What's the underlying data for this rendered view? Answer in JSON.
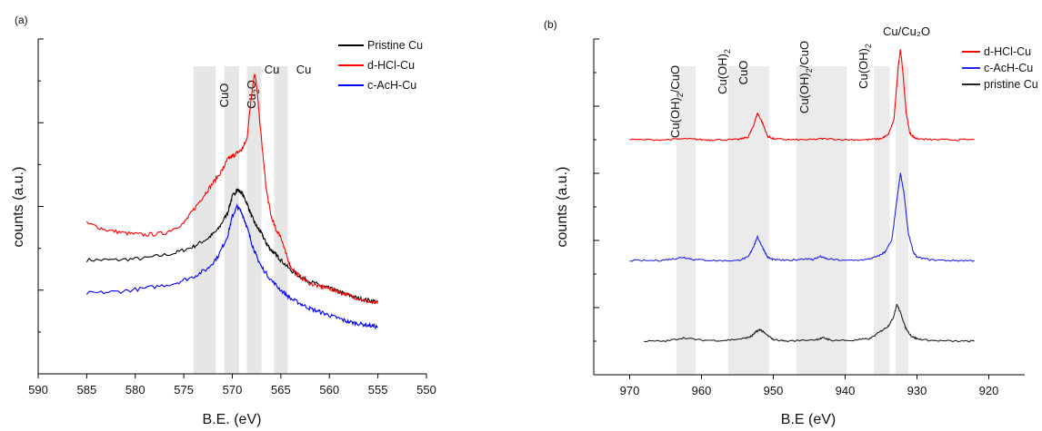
{
  "chart_data": [
    {
      "type": "line",
      "panel_label": "(a)",
      "xlabel": "B.E. (eV)",
      "ylabel": "counts (a.u.)",
      "xlim": [
        590,
        550
      ],
      "xticks": [
        590,
        585,
        580,
        575,
        570,
        565,
        560,
        555,
        550
      ],
      "ylim": [
        0,
        100
      ],
      "yticks_labeled": false,
      "grid": false,
      "legend_position": "top-right",
      "bands": [
        {
          "label": "CuO",
          "from": 574.0,
          "to": 571.7
        },
        {
          "label": "Cu2O",
          "from": 570.8,
          "to": 569.3
        },
        {
          "label": "Cu",
          "from": 568.5,
          "to": 567.0
        },
        {
          "label": "Cu",
          "from": 565.7,
          "to": 564.3
        }
      ],
      "band_labels": {
        "cuo": "CuO",
        "cu2o_base": "Cu",
        "cu2o_sub": "2",
        "cu2o_tail": "O",
        "cu1": "Cu",
        "cu2": "Cu"
      },
      "series": [
        {
          "name": "Pristine Cu",
          "color": "#000000",
          "x": [
            585,
            582,
            579,
            576,
            574,
            572.5,
            571.5,
            570.5,
            570,
            569.5,
            569,
            568.5,
            568,
            567.5,
            567,
            566.5,
            566,
            565.5,
            565,
            564,
            563,
            562,
            561,
            560,
            559,
            558,
            557,
            556,
            555
          ],
          "y": [
            34,
            34,
            34.5,
            36,
            38,
            40.5,
            43,
            48,
            53,
            55,
            54,
            51,
            47,
            44,
            42,
            39,
            37,
            35.5,
            34,
            31,
            29,
            27.5,
            26.5,
            25.5,
            24.5,
            23.5,
            22.5,
            22,
            21.5
          ]
        },
        {
          "name": "d-HCl-Cu",
          "color": "#ff0000",
          "x": [
            585,
            583,
            581,
            579,
            577,
            575,
            574,
            573,
            572,
            571,
            570.5,
            570,
            569.5,
            569,
            568.5,
            568,
            567.7,
            567.5,
            567,
            566.5,
            566,
            565.5,
            565,
            564.5,
            564,
            563,
            562,
            561,
            560,
            559,
            558,
            557,
            556,
            555
          ],
          "y": [
            45,
            43,
            42,
            41.5,
            42,
            45,
            49,
            53,
            57,
            61,
            64,
            65,
            66,
            67,
            70,
            84,
            90,
            86,
            70,
            55,
            47,
            43,
            41,
            36,
            32,
            29,
            27,
            26,
            25.5,
            24.5,
            23.5,
            22.5,
            21.5,
            21
          ]
        },
        {
          "name": "c-AcH-Cu",
          "color": "#0000ff",
          "x": [
            585,
            582,
            579,
            576,
            574,
            572.5,
            571.5,
            570.5,
            570,
            569.5,
            569,
            568.5,
            568,
            567.5,
            567,
            566,
            565,
            564,
            563,
            562,
            561,
            560,
            559,
            558,
            557,
            556,
            555
          ],
          "y": [
            24,
            24.5,
            25.5,
            27,
            29,
            31.5,
            35,
            41,
            47,
            50,
            48,
            44,
            39,
            35,
            32,
            28,
            25,
            22.5,
            21,
            19.5,
            18.5,
            17.5,
            16.5,
            15.5,
            15,
            14.5,
            14
          ]
        }
      ]
    },
    {
      "type": "line",
      "panel_label": "(b)",
      "xlabel": "B.E (eV)",
      "ylabel": "counts (a.u.)",
      "xlim": [
        975,
        915
      ],
      "xticks": [
        970,
        960,
        950,
        940,
        930,
        920
      ],
      "ylim": [
        0,
        100
      ],
      "yticks_labeled": false,
      "grid": false,
      "legend_position": "top-right",
      "bands": [
        {
          "label": "Cu(OH)2/CuO",
          "from": 963.5,
          "to": 960.8
        },
        {
          "label": "Cu(OH)2",
          "from": 956.3,
          "to": 953.5
        },
        {
          "label": "CuO",
          "from": 953.5,
          "to": 950.6
        },
        {
          "label": "Cu(OH)2/CuO",
          "from": 946.8,
          "to": 939.8
        },
        {
          "label": "Cu(OH)2",
          "from": 936.0,
          "to": 933.8
        },
        {
          "label": "Cu/Cu2O",
          "from": 933.0,
          "to": 931.2
        }
      ],
      "band_labels": {
        "b1_pre": "Cu(OH)",
        "b1_sub": "2",
        "b1_post": "/CuO",
        "b2_pre": "Cu(OH)",
        "b2_sub": "2",
        "b3": "CuO",
        "b4_pre": "Cu(OH)",
        "b4_sub": "2",
        "b4_post": "/CuO",
        "b5_pre": "Cu(OH)",
        "b5_sub": "2",
        "b6": "Cu/Cu₂O"
      },
      "series": [
        {
          "name": "d-HCl-Cu",
          "color": "#ff0000",
          "x": [
            970,
            965,
            962,
            960,
            958,
            955,
            953.5,
            952.8,
            952.2,
            951.5,
            950.8,
            950,
            948,
            945,
            943,
            940,
            937,
            935,
            934,
            933.2,
            932.6,
            932.3,
            932,
            931.5,
            931,
            930.5,
            930,
            928,
            925,
            922
          ],
          "y": [
            70,
            70,
            70.3,
            70,
            70,
            70,
            70.8,
            74,
            78,
            75,
            71,
            70.3,
            70,
            70,
            70.3,
            70,
            70,
            70.3,
            71.5,
            76,
            92,
            97,
            91,
            78,
            72,
            70.8,
            70.3,
            70,
            70,
            70
          ]
        },
        {
          "name": "c-AcH-Cu",
          "color": "#2222ee",
          "x": [
            970,
            966,
            964,
            962.5,
            961,
            958,
            955,
            953.5,
            952.8,
            952.2,
            951.5,
            950.8,
            950,
            948,
            945.5,
            944.5,
            943.5,
            942.5,
            940,
            937,
            935.5,
            934.5,
            933.5,
            932.8,
            932.3,
            931.8,
            931.2,
            930.5,
            930,
            928,
            925,
            922
          ],
          "y": [
            34,
            34,
            34.5,
            35,
            34.3,
            34,
            34,
            35,
            38,
            41,
            38,
            35,
            34.3,
            34,
            34.6,
            34.3,
            35.2,
            34.5,
            34,
            34.3,
            35.2,
            36.5,
            40,
            52,
            60,
            54,
            42,
            36.5,
            35,
            34.2,
            34,
            34
          ]
        },
        {
          "name": "pristine Cu",
          "color": "#222222",
          "x": [
            968,
            965,
            962.5,
            960,
            957,
            954,
            953,
            952.3,
            951.8,
            951,
            950,
            948,
            944,
            943,
            942,
            939,
            936.5,
            935,
            934,
            933.3,
            932.8,
            932.2,
            931.6,
            930.8,
            930,
            928,
            925,
            922
          ],
          "y": [
            10,
            10,
            11,
            10.3,
            10.2,
            10.8,
            11.5,
            13,
            13.5,
            12,
            10.5,
            10,
            10.5,
            11,
            10.3,
            10.2,
            10.8,
            13,
            14.5,
            17,
            21,
            18,
            14,
            11.5,
            10.7,
            10.2,
            10,
            10
          ]
        }
      ]
    }
  ]
}
